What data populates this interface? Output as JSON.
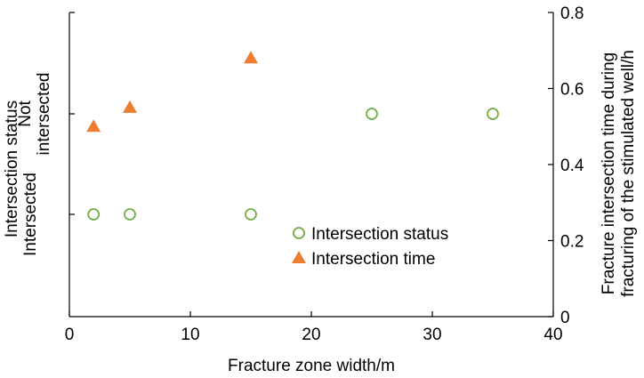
{
  "chart_data": {
    "type": "scatter",
    "title": "",
    "xlabel": "Fracture zone width/m",
    "xlim": [
      0,
      40
    ],
    "xticks": [
      0,
      10,
      20,
      30,
      40
    ],
    "left_axis": {
      "label": "Intersection status",
      "categories": [
        "Intersected",
        "Not intersected"
      ],
      "category_lines": [
        [
          "Intersected"
        ],
        [
          "Not",
          "intersected"
        ]
      ]
    },
    "right_axis": {
      "label_lines": [
        "Fracture intersection time during",
        "fracturing of the stimulated well/h"
      ],
      "ylim": [
        0,
        0.8
      ],
      "ticks": [
        "0",
        "0.2",
        "0.4",
        "0.6",
        "0.8"
      ]
    },
    "grid": false,
    "legend_position": "lower-right",
    "series": [
      {
        "name": "Intersection status",
        "marker": "open-circle",
        "color": "#70AD47",
        "axis": "left",
        "points": [
          {
            "x": 2,
            "y": "Intersected"
          },
          {
            "x": 5,
            "y": "Intersected"
          },
          {
            "x": 15,
            "y": "Intersected"
          },
          {
            "x": 25,
            "y": "Not intersected"
          },
          {
            "x": 35,
            "y": "Not intersected"
          }
        ]
      },
      {
        "name": "Intersection time",
        "marker": "filled-triangle",
        "color": "#ED7D31",
        "axis": "right",
        "points": [
          {
            "x": 2,
            "y": 0.5
          },
          {
            "x": 5,
            "y": 0.55
          },
          {
            "x": 15,
            "y": 0.68
          }
        ]
      }
    ]
  }
}
